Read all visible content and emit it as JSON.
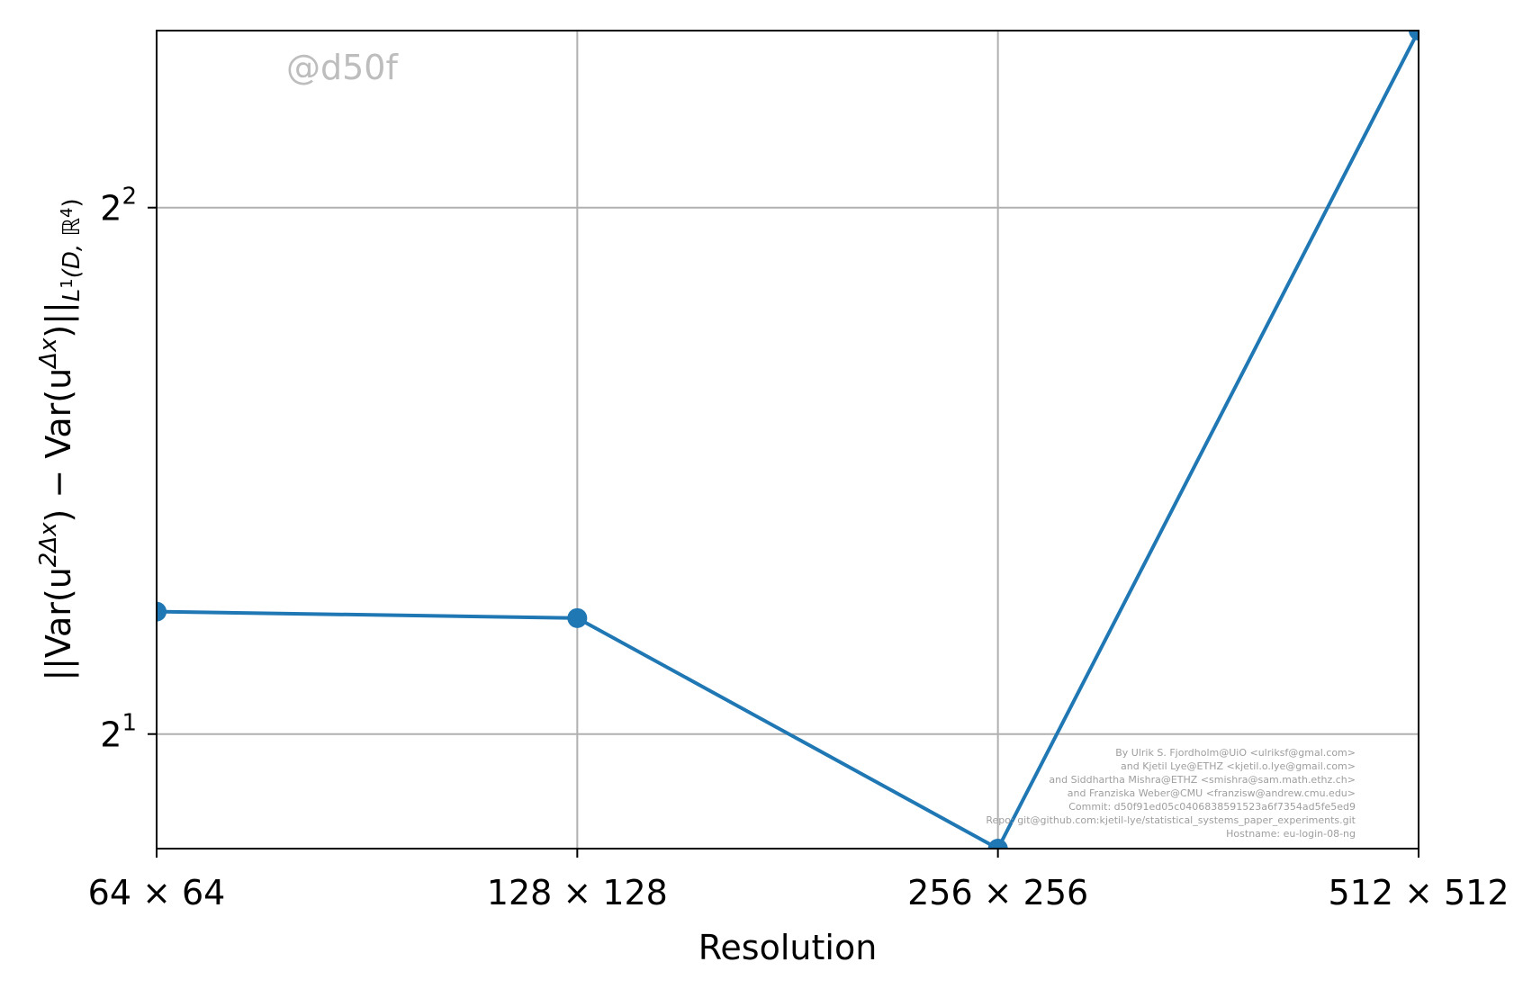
{
  "chart_data": {
    "type": "line",
    "title": "",
    "xlabel": "Resolution",
    "ylabel": "||Var(u²ᐞˣ) − Var(uᐞˣ)||L¹(D, ℝ⁴)",
    "ylabel_parts": {
      "main": "||Var(u",
      "sup1": "2Δx",
      "mid": ") − Var(u",
      "sup2": "Δx",
      "end": ")||",
      "sub": "L",
      "subsup": "1",
      "subrest": "(D, ℝ",
      "subsup2": "4",
      "subend": ")"
    },
    "categories": [
      "64 × 64",
      "128 × 128",
      "256 × 256",
      "512 × 512"
    ],
    "values": [
      2.35,
      2.33,
      1.72,
      5.05
    ],
    "yscale": "log2",
    "ylim": [
      1.72,
      5.05
    ],
    "y_ticks": [
      {
        "base": "2",
        "exp": "1",
        "value": 2
      },
      {
        "base": "2",
        "exp": "2",
        "value": 4
      }
    ],
    "grid": true,
    "color": "#1f77b4"
  },
  "watermark": "@d50f",
  "credits": [
    "By Ulrik S. Fjordholm@UiO <ulriksf@gmal.com>",
    "and Kjetil Lye@ETHZ <kjetil.o.lye@gmail.com>",
    "and Siddhartha Mishra@ETHZ <smishra@sam.math.ethz.ch>",
    "and Franziska Weber@CMU <franzisw@andrew.cmu.edu>",
    "Commit: d50f91ed05c0406838591523a6f7354ad5fe5ed9",
    "Repo: git@github.com:kjetil-lye/statistical_systems_paper_experiments.git",
    "Hostname: eu-login-08-ng"
  ]
}
